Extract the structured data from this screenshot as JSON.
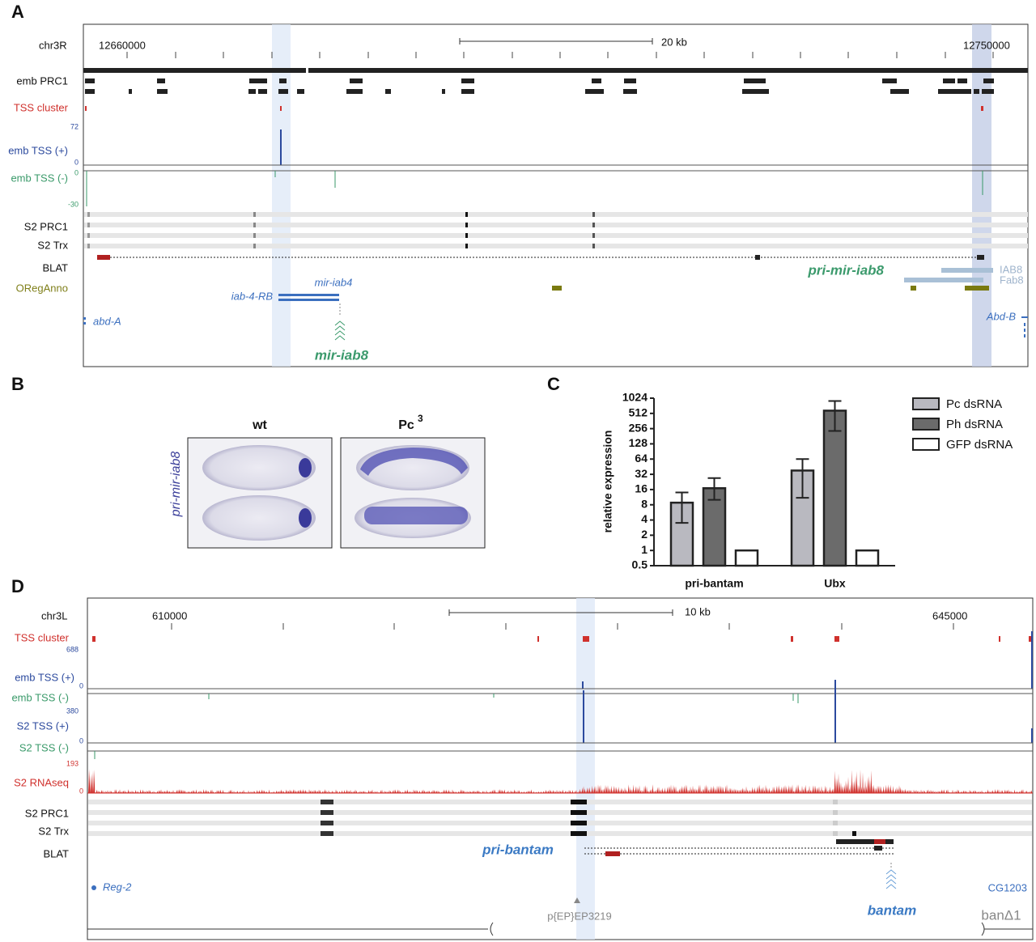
{
  "panel_a": {
    "letter": "A",
    "chrom": "chr3R",
    "pos_left": "12660000",
    "scale": "20 kb",
    "pos_right": "12750000",
    "tracks": [
      "emb PRC1",
      "TSS cluster",
      "emb TSS (+)",
      "emb TSS (-)",
      "S2 PRC1",
      "S2 Trx",
      "BLAT",
      "ORegAnno"
    ],
    "plus_max": "72",
    "plus_min": "0",
    "minus_max": "0",
    "minus_min": "-30",
    "pri_label": "pri-mir-iab8",
    "iab8": "IAB8",
    "fab8": "Fab8",
    "mir_iab4": "mir-iab4",
    "iab4_rb": "iab-4-RB",
    "abd_a": "abd-A",
    "abd_b": "Abd-B",
    "mir_iab8": "mir-iab8"
  },
  "panel_b": {
    "letter": "B",
    "wt": "wt",
    "mutant": "Pc",
    "mutant_superscript": "3",
    "probe": "pri-mir-iab8"
  },
  "chart_data": {
    "type": "bar",
    "letter": "C",
    "y_label": "relative expression",
    "log_scale": true,
    "legend": "right",
    "categories": [
      "pri-bantam",
      "Ubx"
    ],
    "series": [
      {
        "name": "Pc dsRNA",
        "color": "#b9b9c0",
        "values": [
          8.8,
          38
        ],
        "error_low": [
          3.5,
          11
        ],
        "error_high": [
          14,
          64
        ]
      },
      {
        "name": "Ph dsRNA",
        "color": "#6b6b6b",
        "values": [
          17,
          580
        ],
        "error_low": [
          10,
          230
        ],
        "error_high": [
          27,
          900
        ]
      },
      {
        "name": "GFP dsRNA",
        "color": "#ffffff",
        "values": [
          1,
          1
        ],
        "error_low": [
          null,
          null
        ],
        "error_high": [
          null,
          null
        ]
      }
    ],
    "ylim": [
      0.5,
      1024
    ],
    "yticks": [
      0.5,
      1,
      2,
      4,
      8,
      16,
      32,
      64,
      128,
      256,
      512,
      1024
    ]
  },
  "panel_d": {
    "letter": "D",
    "chrom": "chr3L",
    "pos_left": "610000",
    "scale": "10 kb",
    "pos_right": "645000",
    "tracks": [
      "TSS cluster",
      "emb TSS (+)",
      "emb TSS (-)",
      "S2 TSS (+)",
      "S2 TSS (-)",
      "S2 RNAseq",
      "S2 PRC1",
      "S2 Trx",
      "BLAT"
    ],
    "emb_max": "688",
    "emb_min": "0",
    "s2_max": "380",
    "s2_min": "0",
    "rna_max": "193",
    "rna_min": "0",
    "pri_label": "pri-bantam",
    "reg2": "Reg-2",
    "ep": "p{EP}EP3219",
    "cg1203": "CG1203",
    "bantam": "bantam",
    "deletion": "banΔ1"
  }
}
